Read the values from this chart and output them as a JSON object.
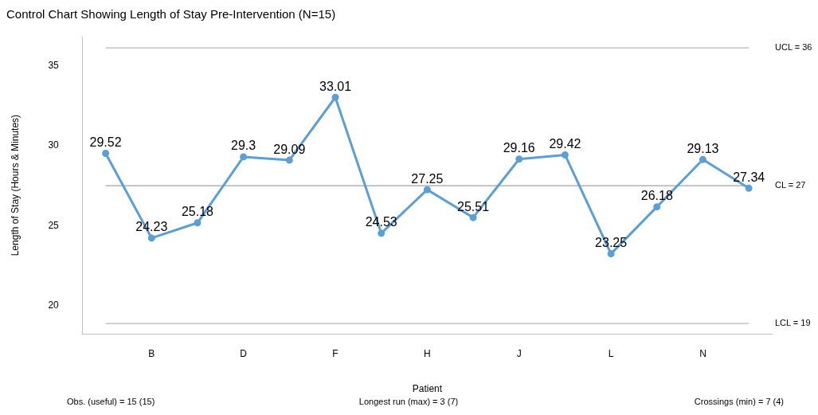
{
  "chart_data": {
    "type": "line",
    "title": "Control Chart Showing Length of Stay Pre-Intervention (N=15)",
    "xlabel": "Patient",
    "ylabel": "Length of Stay (Hours & Minutes)",
    "categories": [
      null,
      "B",
      null,
      "D",
      null,
      "F",
      null,
      "H",
      null,
      "J",
      null,
      "L",
      null,
      "N",
      null
    ],
    "series": [
      {
        "color": "#5b9fd6",
        "values": [
          29.52,
          24.23,
          25.18,
          29.3,
          29.09,
          33.01,
          24.53,
          27.25,
          25.51,
          29.16,
          29.42,
          23.25,
          26.18,
          29.13,
          27.34
        ]
      }
    ],
    "ylim": [
      18.25,
      36.8
    ],
    "yticks": [
      20,
      25,
      30,
      35
    ],
    "ref_lines": [
      {
        "axis": "y",
        "value": 36.1,
        "label": "UCL = 36",
        "color": "#a6a6a6"
      },
      {
        "axis": "y",
        "value": 27.5,
        "label": "CL = 27",
        "color": "#8c8c8c"
      },
      {
        "axis": "y",
        "value": 18.9,
        "label": "LCL = 19",
        "color": "#a6a6a6"
      }
    ],
    "annotations": [
      "Obs. (useful) = 15 (15)",
      "Longest run (max) = 3 (7)",
      "Crossings (min) = 7 (4)"
    ],
    "data_labels": true,
    "grid": false,
    "legend": false,
    "marker": "circle",
    "line_style": "solid"
  }
}
